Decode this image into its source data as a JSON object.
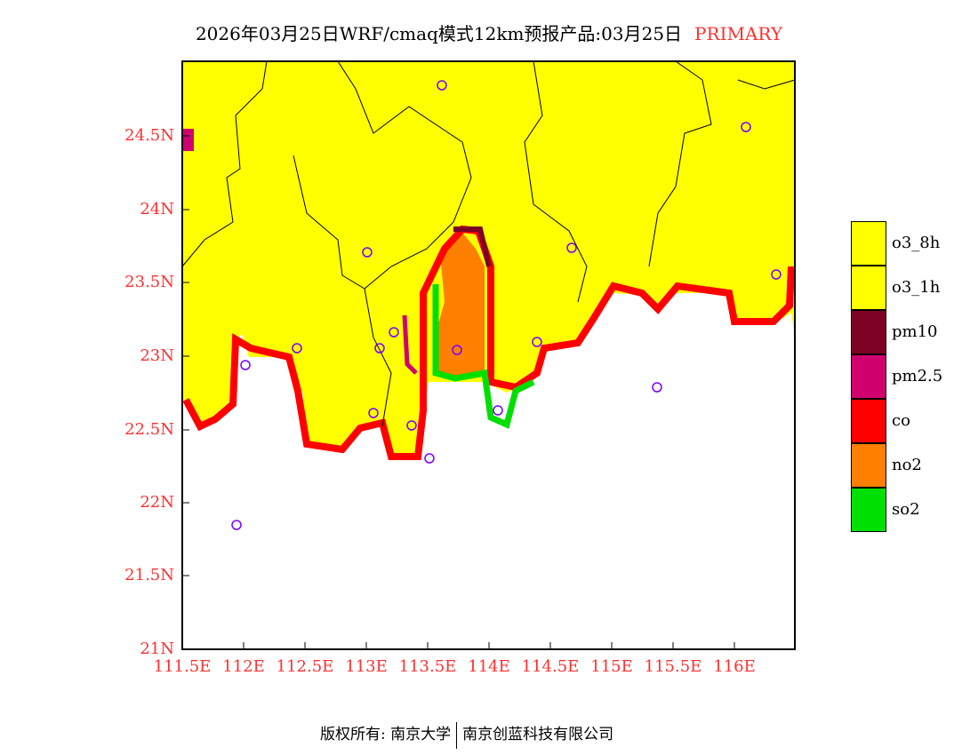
{
  "title": {
    "main": "2026年03月25日WRF/cmaq模式12km预报产品:03月25日",
    "tag": "PRIMARY"
  },
  "axes": {
    "lat_labels": [
      "24.5N",
      "24N",
      "23.5N",
      "23N",
      "22.5N",
      "22N",
      "21.5N",
      "21N"
    ],
    "lon_labels": [
      "111.5E",
      "112E",
      "112.5E",
      "113E",
      "113.5E",
      "114E",
      "114.5E",
      "115E",
      "115.5E",
      "116E"
    ]
  },
  "legend": [
    {
      "label": "o3_8h",
      "color": "#ffff00"
    },
    {
      "label": "o3_1h",
      "color": "#ffff00"
    },
    {
      "label": "pm10",
      "color": "#7d0025"
    },
    {
      "label": "pm2.5",
      "color": "#d0006f"
    },
    {
      "label": "co",
      "color": "#ff0000"
    },
    {
      "label": "no2",
      "color": "#ff7f00"
    },
    {
      "label": "so2",
      "color": "#00e000"
    }
  ],
  "footer": {
    "left": "版权所有: 南京大学",
    "right": "南京创蓝科技有限公司"
  }
}
